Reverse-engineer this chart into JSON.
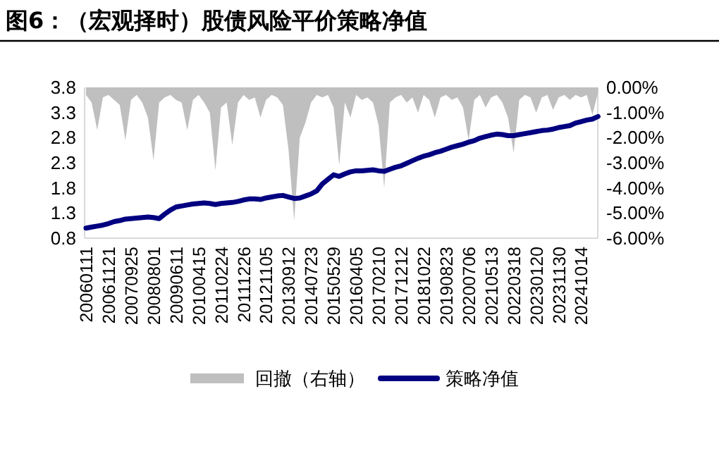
{
  "chart_data": {
    "type": "line",
    "title": "图6：（宏观择时）股债风险平价策略净值",
    "categories": [
      "20060111",
      null,
      null,
      null,
      "20061121",
      null,
      null,
      null,
      "20070925",
      null,
      null,
      null,
      "20080801",
      null,
      null,
      null,
      "20090611",
      null,
      null,
      null,
      "20100415",
      null,
      null,
      null,
      "20110224",
      null,
      null,
      null,
      "20111226",
      null,
      null,
      null,
      "20121105",
      null,
      null,
      null,
      "20130912",
      null,
      null,
      null,
      "20140723",
      null,
      null,
      null,
      "20150529",
      null,
      null,
      null,
      "20160405",
      null,
      null,
      null,
      "20170210",
      null,
      null,
      null,
      "20171212",
      null,
      null,
      null,
      "20181022",
      null,
      null,
      null,
      "20190823",
      null,
      null,
      null,
      "20200706",
      null,
      null,
      null,
      "20210513",
      null,
      null,
      null,
      "20220318",
      null,
      null,
      null,
      "20230120",
      null,
      null,
      null,
      "20231130",
      null,
      null,
      null,
      "20241014",
      null,
      null,
      null
    ],
    "series": [
      {
        "name": "回撤（右轴）",
        "type": "area",
        "axis": "y2",
        "color": "#bfbfbf",
        "values": [
          -0.3,
          -0.6,
          -1.7,
          -0.4,
          -0.3,
          -0.5,
          -0.7,
          -2.1,
          -0.5,
          -0.3,
          -0.6,
          -1.2,
          -2.9,
          -0.6,
          -0.4,
          -0.3,
          -0.5,
          -0.6,
          -1.7,
          -0.5,
          -0.3,
          -0.6,
          -1.0,
          -3.3,
          -0.8,
          -0.6,
          -2.3,
          -0.6,
          -0.3,
          -0.5,
          -0.4,
          -1.2,
          -0.5,
          -0.3,
          -0.4,
          -0.7,
          -2.5,
          -5.3,
          -2.0,
          -1.4,
          -0.6,
          -0.3,
          -0.4,
          -0.3,
          -0.8,
          -3.1,
          -0.6,
          -1.2,
          -0.3,
          -0.5,
          -0.4,
          -0.6,
          -1.5,
          -4.0,
          -0.6,
          -0.4,
          -0.3,
          -0.6,
          -0.4,
          -1.0,
          -0.3,
          -0.5,
          -1.2,
          -0.4,
          -0.3,
          -0.5,
          -0.4,
          -0.8,
          -2.1,
          -0.5,
          -0.3,
          -0.8,
          -0.4,
          -0.3,
          -0.6,
          -1.2,
          -2.6,
          -0.5,
          -0.3,
          -0.4,
          -1.0,
          -0.4,
          -0.3,
          -0.9,
          -0.4,
          -0.3,
          -0.5,
          -0.3,
          -0.4,
          -0.3,
          -1.1,
          -0.2
        ]
      },
      {
        "name": "策略净值",
        "type": "line",
        "color": "#000080",
        "values": [
          1.0,
          1.02,
          1.04,
          1.06,
          1.09,
          1.13,
          1.15,
          1.18,
          1.19,
          1.2,
          1.21,
          1.22,
          1.21,
          1.19,
          1.28,
          1.36,
          1.42,
          1.44,
          1.46,
          1.48,
          1.49,
          1.5,
          1.49,
          1.47,
          1.49,
          1.5,
          1.51,
          1.53,
          1.56,
          1.58,
          1.58,
          1.57,
          1.6,
          1.62,
          1.64,
          1.65,
          1.62,
          1.59,
          1.6,
          1.64,
          1.68,
          1.74,
          1.88,
          1.97,
          2.06,
          2.03,
          2.08,
          2.12,
          2.14,
          2.14,
          2.15,
          2.16,
          2.14,
          2.13,
          2.17,
          2.21,
          2.24,
          2.29,
          2.34,
          2.39,
          2.43,
          2.46,
          2.5,
          2.53,
          2.57,
          2.61,
          2.64,
          2.67,
          2.71,
          2.74,
          2.79,
          2.82,
          2.85,
          2.87,
          2.86,
          2.84,
          2.84,
          2.86,
          2.88,
          2.9,
          2.92,
          2.94,
          2.95,
          2.97,
          3.0,
          3.02,
          3.04,
          3.09,
          3.12,
          3.15,
          3.17,
          3.22
        ]
      }
    ],
    "ylim": [
      0.8,
      3.8
    ],
    "yticks": [
      0.8,
      1.3,
      1.8,
      2.3,
      2.8,
      3.3,
      3.8
    ],
    "y2lim": [
      -6,
      0
    ],
    "y2ticks": [
      {
        "value": 0,
        "label": "0.00%"
      },
      {
        "value": -1,
        "label": "-1.00%"
      },
      {
        "value": -2,
        "label": "-2.00%"
      },
      {
        "value": -3,
        "label": "-3.00%"
      },
      {
        "value": -4,
        "label": "-4.00%"
      },
      {
        "value": -5,
        "label": "-5.00%"
      },
      {
        "value": -6,
        "label": "-6.00%"
      }
    ],
    "legend": "bottom"
  }
}
